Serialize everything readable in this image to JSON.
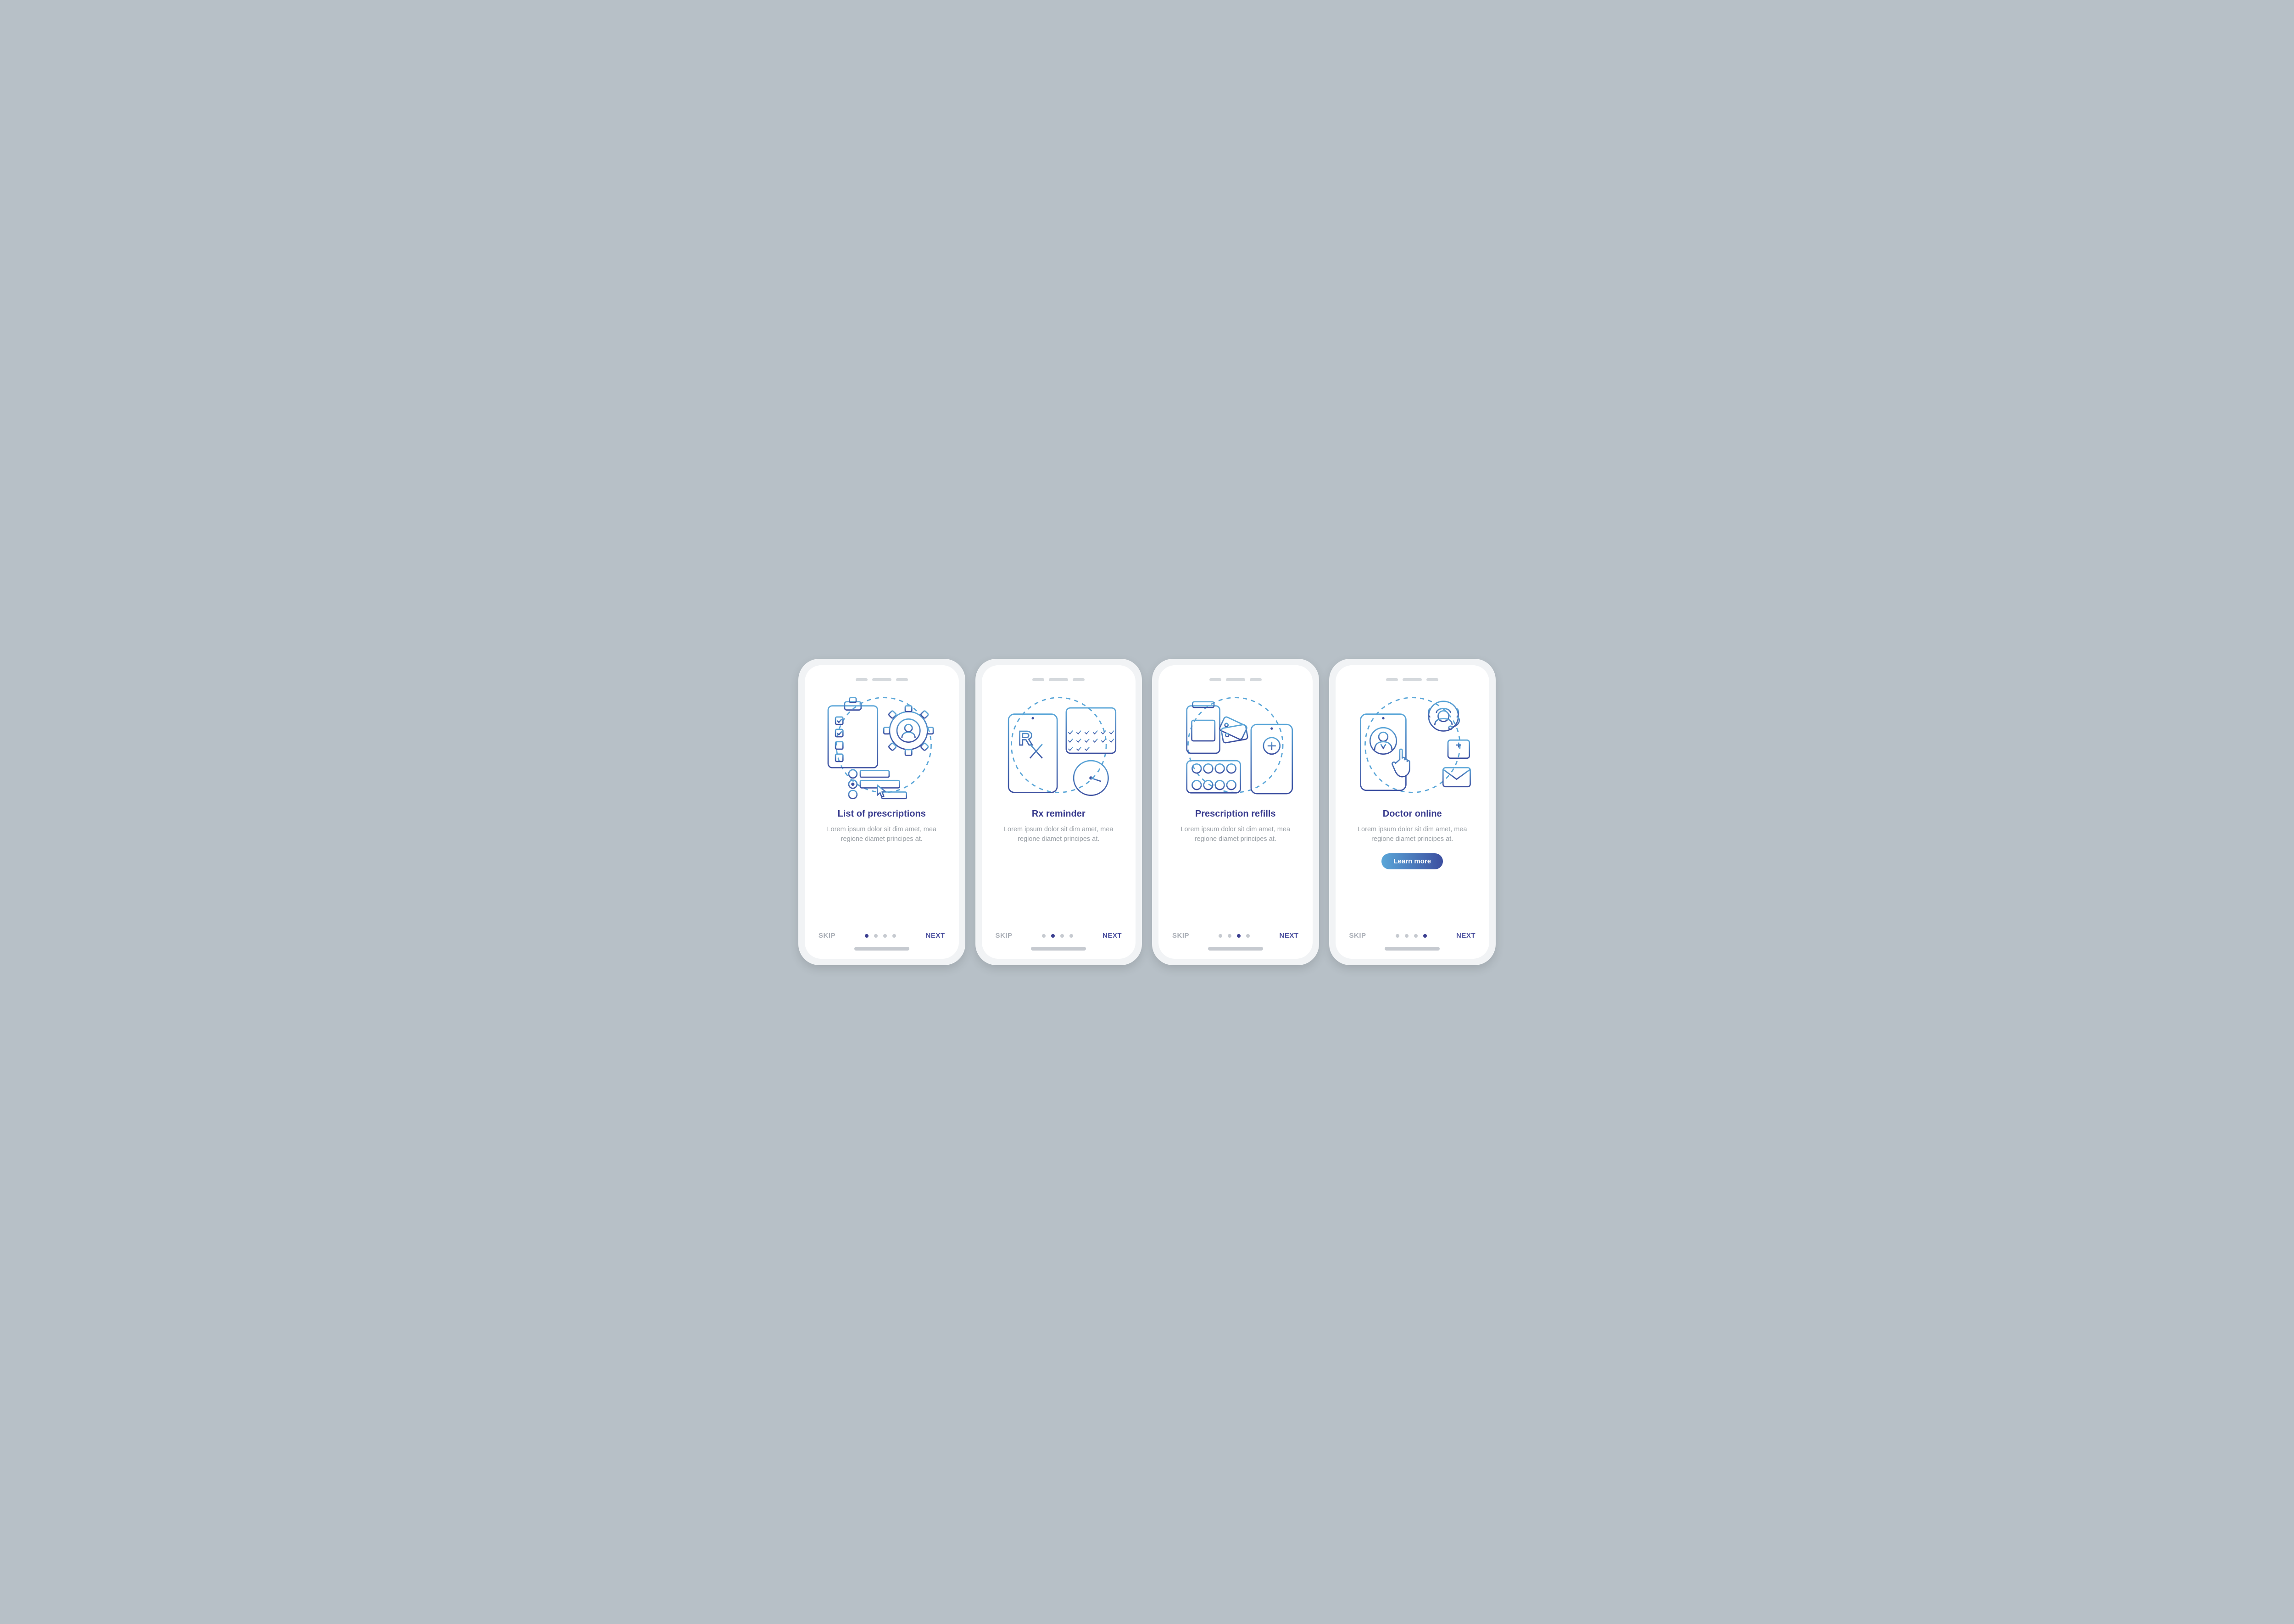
{
  "background_color": "#b7c0c7",
  "phone_frame_color": "#f1f3f5",
  "screen_color": "#ffffff",
  "gradient_top": "#5aa6d8",
  "gradient_bottom": "#3c4fa0",
  "title_color": "#3a3d8f",
  "desc_color": "#9aa0a6",
  "dot_inactive": "#c6cad0",
  "dot_active": "#3b3e90",
  "illustration_stroke_width": 3,
  "dashed_circle_color": "#5aa6d8",
  "body_text": "Lorem ipsum dolor sit dim amet, mea regione diamet principes at.",
  "skip_label": "SKIP",
  "next_label": "NEXT",
  "learn_label": "Learn more",
  "screens": [
    {
      "title": "List of prescriptions",
      "active_dot": 0,
      "show_learn": false,
      "icon": "prescriptions"
    },
    {
      "title": "Rx reminder",
      "active_dot": 1,
      "show_learn": false,
      "icon": "reminder"
    },
    {
      "title": "Prescription refills",
      "active_dot": 2,
      "show_learn": false,
      "icon": "refills"
    },
    {
      "title": "Doctor online",
      "active_dot": 3,
      "show_learn": true,
      "icon": "doctor"
    }
  ]
}
